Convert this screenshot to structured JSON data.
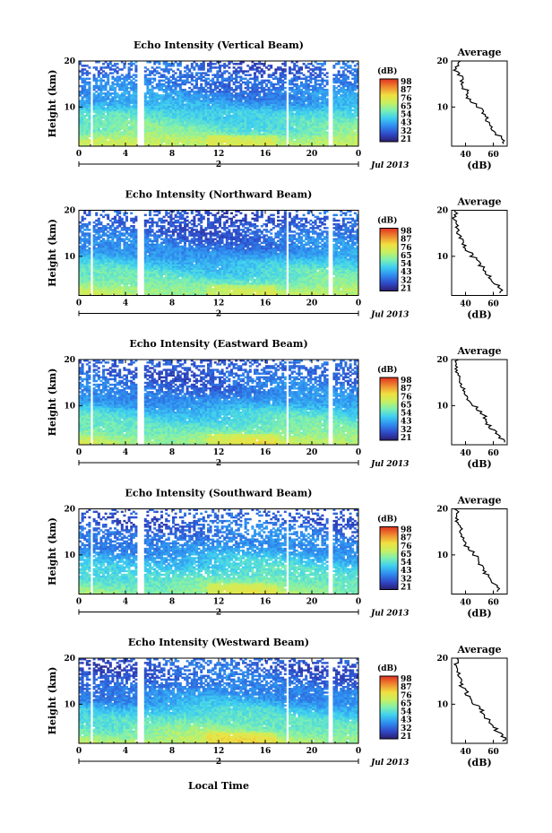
{
  "figure": {
    "xlabel": "Local Time",
    "date_label": "Jul 2013",
    "day_label": "2"
  },
  "chart_data": [
    {
      "type": "heatmap",
      "title": "Echo Intensity (Vertical Beam)",
      "ylabel": "Height (km)",
      "x_ticks": [
        "0",
        "4",
        "8",
        "12",
        "16",
        "20",
        "0"
      ],
      "y_ticks": [
        "20",
        "10"
      ],
      "xlim": [
        0,
        24
      ],
      "ylim": [
        1.5,
        20
      ],
      "colorbar": {
        "unit": "(dB)",
        "ticks": [
          "98",
          "87",
          "76",
          "65",
          "54",
          "43",
          "32",
          "21"
        ],
        "range": [
          21,
          98
        ]
      },
      "gaps_hours": [
        [
          1.0,
          1.2
        ],
        [
          5.0,
          5.5
        ],
        [
          17.8,
          18.0
        ],
        [
          21.5,
          21.8
        ]
      ],
      "profile": {
        "title": "Average",
        "xlabel": "(dB)",
        "x_ticks": [
          "40",
          "60"
        ],
        "y_ticks": [
          "20",
          "10"
        ],
        "xlim": [
          30,
          70
        ],
        "heights": [
          2,
          3,
          4,
          5,
          6,
          7,
          8,
          9,
          10,
          11,
          12,
          13,
          14,
          15,
          16,
          17,
          18,
          19,
          20
        ],
        "values": [
          68,
          67,
          62,
          58,
          57,
          55,
          53,
          52,
          47,
          44,
          42,
          41,
          38,
          37,
          38,
          35,
          33,
          34,
          35
        ]
      }
    },
    {
      "type": "heatmap",
      "title": "Echo Intensity (Northward Beam)",
      "ylabel": "Height (km)",
      "x_ticks": [
        "0",
        "4",
        "8",
        "12",
        "16",
        "20",
        "0"
      ],
      "y_ticks": [
        "20",
        "10"
      ],
      "xlim": [
        0,
        24
      ],
      "ylim": [
        1.5,
        20
      ],
      "colorbar": {
        "unit": "(dB)",
        "ticks": [
          "98",
          "87",
          "76",
          "65",
          "54",
          "43",
          "32",
          "21"
        ],
        "range": [
          21,
          98
        ]
      },
      "gaps_hours": [
        [
          1.0,
          1.2
        ],
        [
          5.0,
          5.5
        ],
        [
          17.8,
          18.0
        ],
        [
          21.5,
          21.8
        ]
      ],
      "profile": {
        "title": "Average",
        "xlabel": "(dB)",
        "x_ticks": [
          "40",
          "60"
        ],
        "y_ticks": [
          "20",
          "10"
        ],
        "xlim": [
          30,
          70
        ],
        "heights": [
          2,
          3,
          4,
          5,
          6,
          7,
          8,
          9,
          10,
          11,
          12,
          13,
          14,
          15,
          16,
          17,
          18,
          19,
          20
        ],
        "values": [
          66,
          64,
          60,
          57,
          55,
          53,
          50,
          48,
          44,
          41,
          39,
          38,
          36,
          35,
          34,
          33,
          32,
          33,
          33
        ]
      }
    },
    {
      "type": "heatmap",
      "title": "Echo Intensity (Eastward Beam)",
      "ylabel": "Height (km)",
      "x_ticks": [
        "0",
        "4",
        "8",
        "12",
        "16",
        "20",
        "0"
      ],
      "y_ticks": [
        "20",
        "10"
      ],
      "xlim": [
        0,
        24
      ],
      "ylim": [
        1.5,
        20
      ],
      "colorbar": {
        "unit": "(dB)",
        "ticks": [
          "98",
          "87",
          "76",
          "65",
          "54",
          "43",
          "32",
          "21"
        ],
        "range": [
          21,
          98
        ]
      },
      "gaps_hours": [
        [
          1.0,
          1.2
        ],
        [
          5.0,
          5.5
        ],
        [
          17.8,
          18.0
        ],
        [
          21.5,
          21.8
        ]
      ],
      "profile": {
        "title": "Average",
        "xlabel": "(dB)",
        "x_ticks": [
          "40",
          "60"
        ],
        "y_ticks": [
          "20",
          "10"
        ],
        "xlim": [
          30,
          70
        ],
        "heights": [
          2,
          3,
          4,
          5,
          6,
          7,
          8,
          9,
          10,
          11,
          12,
          13,
          14,
          15,
          16,
          17,
          18,
          19,
          20
        ],
        "values": [
          67,
          65,
          61,
          58,
          56,
          54,
          52,
          49,
          45,
          42,
          40,
          38,
          37,
          36,
          35,
          34,
          33,
          34,
          34
        ]
      }
    },
    {
      "type": "heatmap",
      "title": "Echo Intensity (Southward Beam)",
      "ylabel": "Height (km)",
      "x_ticks": [
        "0",
        "4",
        "8",
        "12",
        "16",
        "20",
        "0"
      ],
      "y_ticks": [
        "20",
        "10"
      ],
      "xlim": [
        0,
        24
      ],
      "ylim": [
        1.5,
        20
      ],
      "colorbar": {
        "unit": "(dB)",
        "ticks": [
          "98",
          "87",
          "76",
          "65",
          "54",
          "43",
          "32",
          "21"
        ],
        "range": [
          21,
          98
        ]
      },
      "gaps_hours": [
        [
          1.0,
          1.2
        ],
        [
          5.0,
          5.5
        ],
        [
          17.8,
          18.0
        ],
        [
          21.5,
          21.8
        ]
      ],
      "profile": {
        "title": "Average",
        "xlabel": "(dB)",
        "x_ticks": [
          "40",
          "60"
        ],
        "y_ticks": [
          "20",
          "10"
        ],
        "xlim": [
          30,
          70
        ],
        "heights": [
          2,
          3,
          4,
          5,
          6,
          7,
          8,
          9,
          10,
          11,
          12,
          13,
          14,
          15,
          16,
          17,
          18,
          19,
          20
        ],
        "values": [
          64,
          62,
          59,
          56,
          54,
          52,
          50,
          48,
          45,
          42,
          40,
          39,
          38,
          37,
          36,
          34,
          33,
          34,
          33
        ]
      }
    },
    {
      "type": "heatmap",
      "title": "Echo Intensity (Westward Beam)",
      "ylabel": "Height (km)",
      "x_ticks": [
        "0",
        "4",
        "8",
        "12",
        "16",
        "20",
        "0"
      ],
      "y_ticks": [
        "20",
        "10"
      ],
      "xlim": [
        0,
        24
      ],
      "ylim": [
        1.5,
        20
      ],
      "colorbar": {
        "unit": "(dB)",
        "ticks": [
          "98",
          "87",
          "76",
          "65",
          "54",
          "43",
          "32",
          "21"
        ],
        "range": [
          21,
          98
        ]
      },
      "gaps_hours": [
        [
          1.0,
          1.2
        ],
        [
          5.0,
          5.5
        ],
        [
          17.8,
          18.0
        ],
        [
          21.5,
          21.8
        ]
      ],
      "profile": {
        "title": "Average",
        "xlabel": "(dB)",
        "x_ticks": [
          "40",
          "60"
        ],
        "y_ticks": [
          "20",
          "10"
        ],
        "xlim": [
          30,
          70
        ],
        "heights": [
          2,
          3,
          4,
          5,
          6,
          7,
          8,
          9,
          10,
          11,
          12,
          13,
          14,
          15,
          16,
          17,
          18,
          19,
          20
        ],
        "values": [
          68,
          66,
          62,
          59,
          57,
          55,
          52,
          50,
          46,
          43,
          41,
          39,
          37,
          36,
          35,
          34,
          33,
          34,
          34
        ]
      }
    }
  ]
}
